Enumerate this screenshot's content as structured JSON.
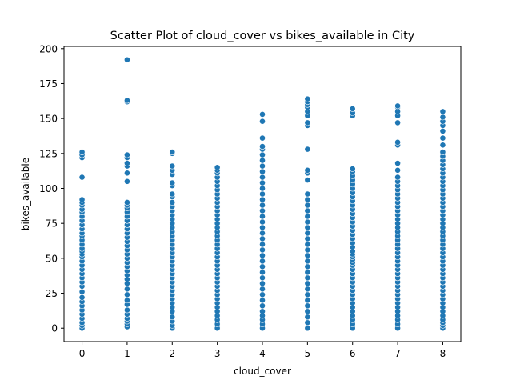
{
  "chart_data": {
    "type": "scatter",
    "title": "Scatter Plot of cloud_cover vs bikes_available in City",
    "xlabel": "cloud_cover",
    "ylabel": "bikes_available",
    "xlim": [
      -0.4,
      8.4
    ],
    "ylim": [
      -9.6,
      201.6
    ],
    "xticks": [
      0,
      1,
      2,
      3,
      4,
      5,
      6,
      7,
      8
    ],
    "yticks": [
      0,
      25,
      50,
      75,
      100,
      125,
      150,
      175,
      200
    ],
    "grid": false,
    "legend": "none",
    "marker_color": "#1f77b4",
    "marker_edge_color": "#ffffff",
    "series": [
      {
        "x": 0,
        "y": [
          0,
          2,
          4,
          7,
          10,
          13,
          16,
          19,
          22,
          26,
          30,
          33,
          36,
          39,
          42,
          45,
          48,
          51,
          53,
          55,
          57,
          60,
          63,
          66,
          68,
          71,
          74,
          77,
          80,
          83,
          85,
          88,
          90,
          92,
          108,
          122,
          124,
          126
        ]
      },
      {
        "x": 1,
        "y": [
          1,
          3,
          5,
          7,
          10,
          13,
          17,
          20,
          24,
          28,
          32,
          35,
          38,
          41,
          44,
          47,
          50,
          53,
          56,
          59,
          62,
          65,
          68,
          71,
          74,
          77,
          80,
          83,
          86,
          88,
          90,
          105,
          111,
          116,
          118,
          122,
          124,
          162,
          163,
          192
        ]
      },
      {
        "x": 2,
        "y": [
          0,
          2,
          5,
          8,
          12,
          15,
          18,
          21,
          24,
          27,
          30,
          33,
          36,
          39,
          42,
          45,
          48,
          51,
          54,
          57,
          60,
          63,
          66,
          69,
          72,
          75,
          78,
          81,
          84,
          87,
          90,
          94,
          96,
          102,
          104,
          110,
          113,
          116,
          125,
          126
        ]
      },
      {
        "x": 3,
        "y": [
          0,
          3,
          6,
          9,
          12,
          15,
          18,
          21,
          24,
          27,
          30,
          33,
          36,
          39,
          42,
          45,
          48,
          51,
          54,
          57,
          60,
          63,
          66,
          69,
          72,
          75,
          78,
          81,
          84,
          87,
          90,
          93,
          96,
          99,
          102,
          105,
          108,
          111,
          113,
          115
        ]
      },
      {
        "x": 4,
        "y": [
          0,
          3,
          6,
          9,
          12,
          16,
          20,
          24,
          28,
          32,
          36,
          40,
          44,
          48,
          52,
          56,
          60,
          64,
          68,
          72,
          76,
          80,
          84,
          88,
          92,
          96,
          100,
          104,
          108,
          112,
          116,
          120,
          124,
          128,
          130,
          136,
          148,
          153
        ]
      },
      {
        "x": 5,
        "y": [
          0,
          4,
          8,
          12,
          16,
          20,
          24,
          28,
          32,
          36,
          40,
          44,
          48,
          52,
          56,
          60,
          64,
          68,
          72,
          76,
          80,
          84,
          88,
          92,
          96,
          106,
          111,
          113,
          128,
          145,
          147,
          152,
          155,
          158,
          160,
          162,
          164
        ]
      },
      {
        "x": 6,
        "y": [
          0,
          3,
          6,
          9,
          12,
          15,
          18,
          21,
          24,
          27,
          30,
          33,
          36,
          39,
          42,
          45,
          47,
          49,
          51,
          53,
          55,
          58,
          61,
          64,
          67,
          70,
          73,
          76,
          79,
          82,
          85,
          88,
          91,
          94,
          97,
          100,
          103,
          106,
          109,
          112,
          114,
          152,
          154,
          157
        ]
      },
      {
        "x": 7,
        "y": [
          0,
          3,
          6,
          9,
          12,
          15,
          18,
          21,
          24,
          27,
          30,
          33,
          36,
          39,
          42,
          45,
          48,
          51,
          54,
          57,
          60,
          63,
          66,
          69,
          72,
          75,
          78,
          81,
          84,
          87,
          90,
          93,
          96,
          99,
          102,
          105,
          108,
          113,
          118,
          131,
          133,
          147,
          152,
          155,
          158,
          159
        ]
      },
      {
        "x": 8,
        "y": [
          0,
          2,
          4,
          6,
          9,
          12,
          15,
          18,
          21,
          24,
          27,
          30,
          33,
          36,
          39,
          42,
          45,
          48,
          51,
          54,
          57,
          60,
          63,
          66,
          69,
          72,
          75,
          78,
          81,
          84,
          87,
          90,
          93,
          96,
          99,
          102,
          105,
          108,
          111,
          114,
          117,
          120,
          123,
          126,
          131,
          136,
          141,
          145,
          148,
          151,
          155
        ]
      }
    ]
  }
}
